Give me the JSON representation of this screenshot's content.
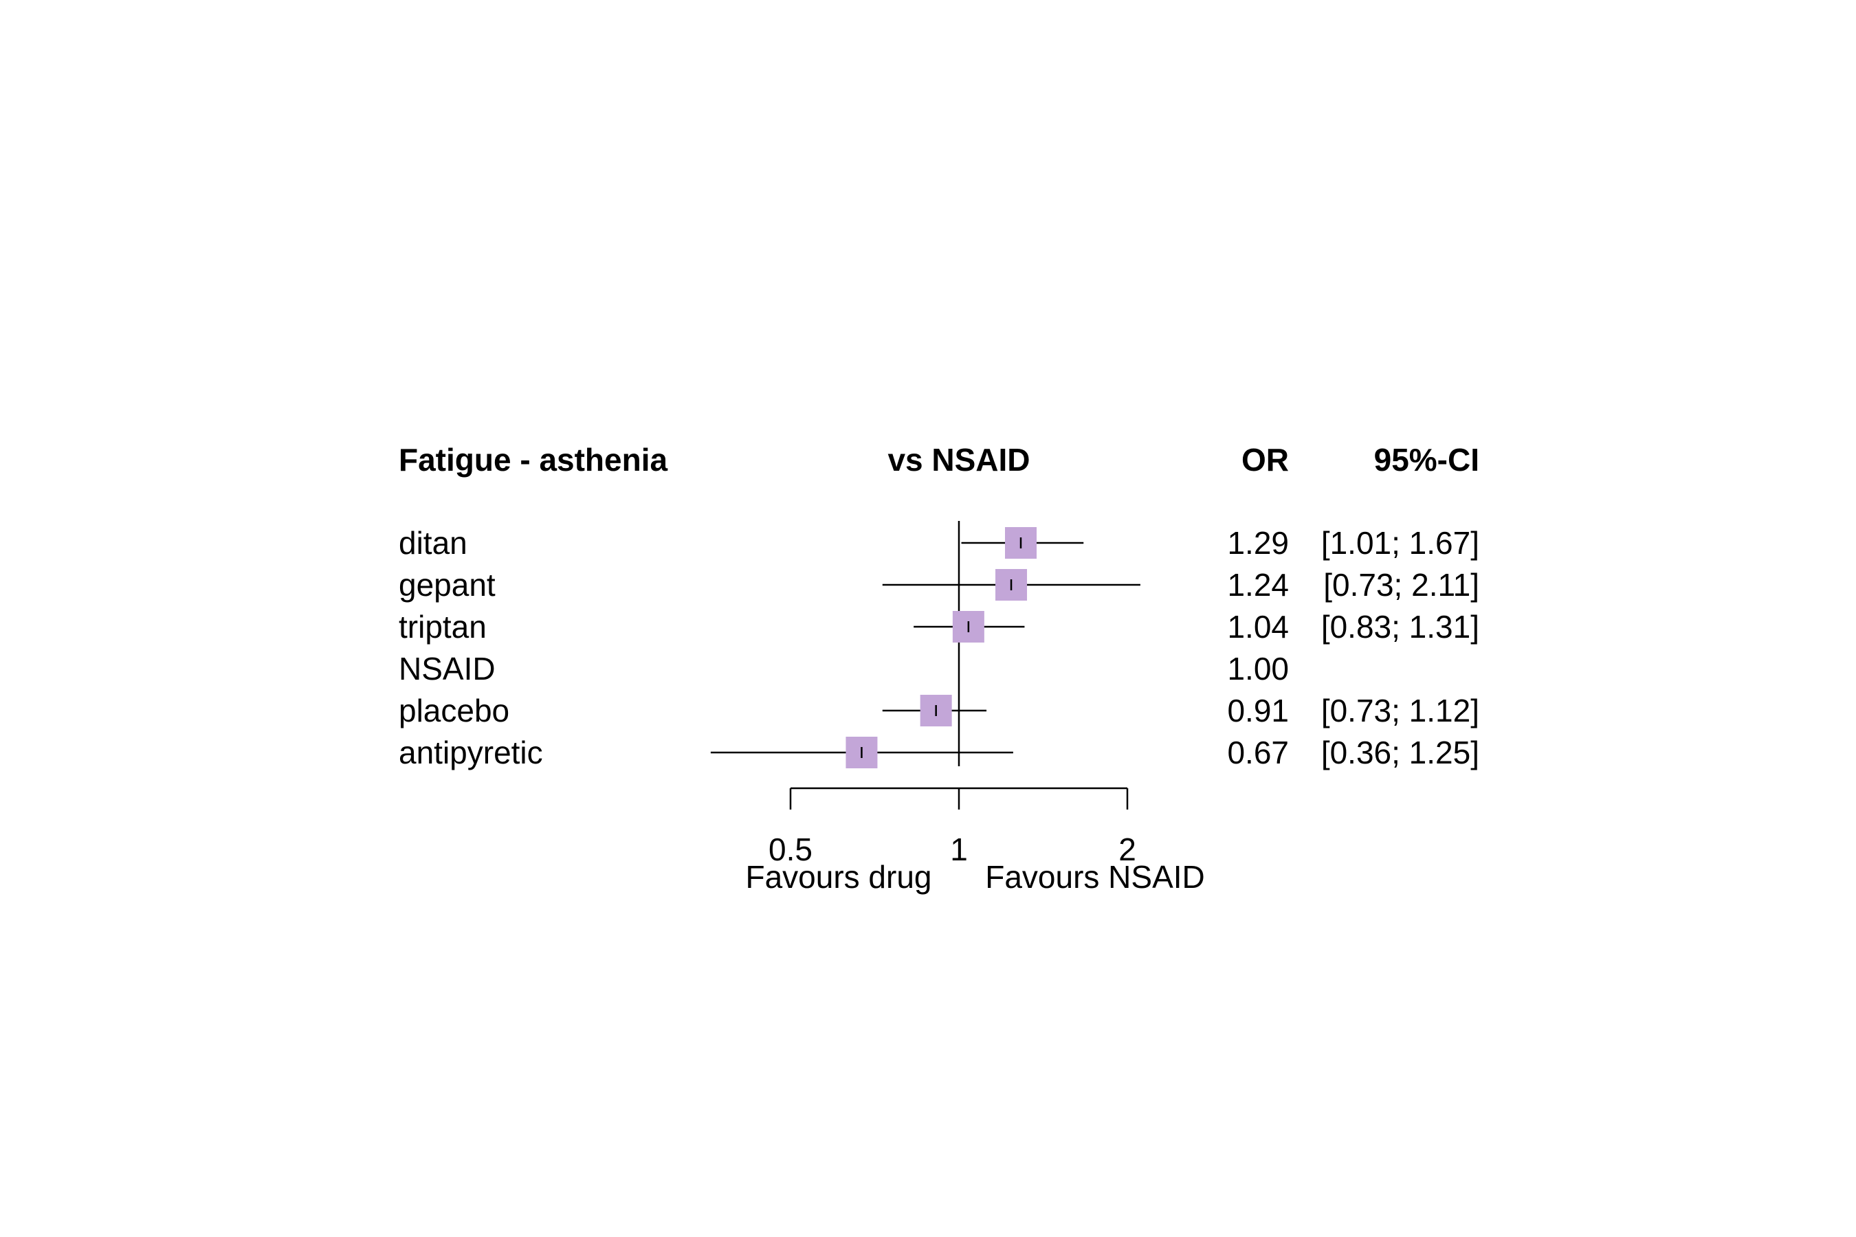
{
  "chart_data": {
    "type": "forest",
    "title": "Fatigue - asthenia",
    "comparison_label": "vs NSAID",
    "columns": {
      "estimate": "OR",
      "interval": "95%-CI"
    },
    "scale": "log",
    "reference_value": 1,
    "xlim": [
      0.5,
      2
    ],
    "x_ticks": [
      {
        "value": 0.5,
        "label": "0.5"
      },
      {
        "value": 1,
        "label": "1"
      },
      {
        "value": 2,
        "label": "2"
      }
    ],
    "favours_left": "Favours drug",
    "favours_right": "Favours NSAID",
    "marker_color": "#c3a6d8",
    "rows": [
      {
        "name": "ditan",
        "or": 1.29,
        "lower": 1.01,
        "upper": 1.67,
        "or_text": "1.29",
        "ci_text": "[1.01; 1.67]"
      },
      {
        "name": "gepant",
        "or": 1.24,
        "lower": 0.73,
        "upper": 2.11,
        "or_text": "1.24",
        "ci_text": "[0.73; 2.11]"
      },
      {
        "name": "triptan",
        "or": 1.04,
        "lower": 0.83,
        "upper": 1.31,
        "or_text": "1.04",
        "ci_text": "[0.83; 1.31]"
      },
      {
        "name": "NSAID",
        "or": 1.0,
        "lower": null,
        "upper": null,
        "or_text": "1.00",
        "ci_text": ""
      },
      {
        "name": "placebo",
        "or": 0.91,
        "lower": 0.73,
        "upper": 1.12,
        "or_text": "0.91",
        "ci_text": "[0.73; 1.12]"
      },
      {
        "name": "antipyretic",
        "or": 0.67,
        "lower": 0.36,
        "upper": 1.25,
        "or_text": "0.67",
        "ci_text": "[0.36; 1.25]"
      }
    ]
  }
}
